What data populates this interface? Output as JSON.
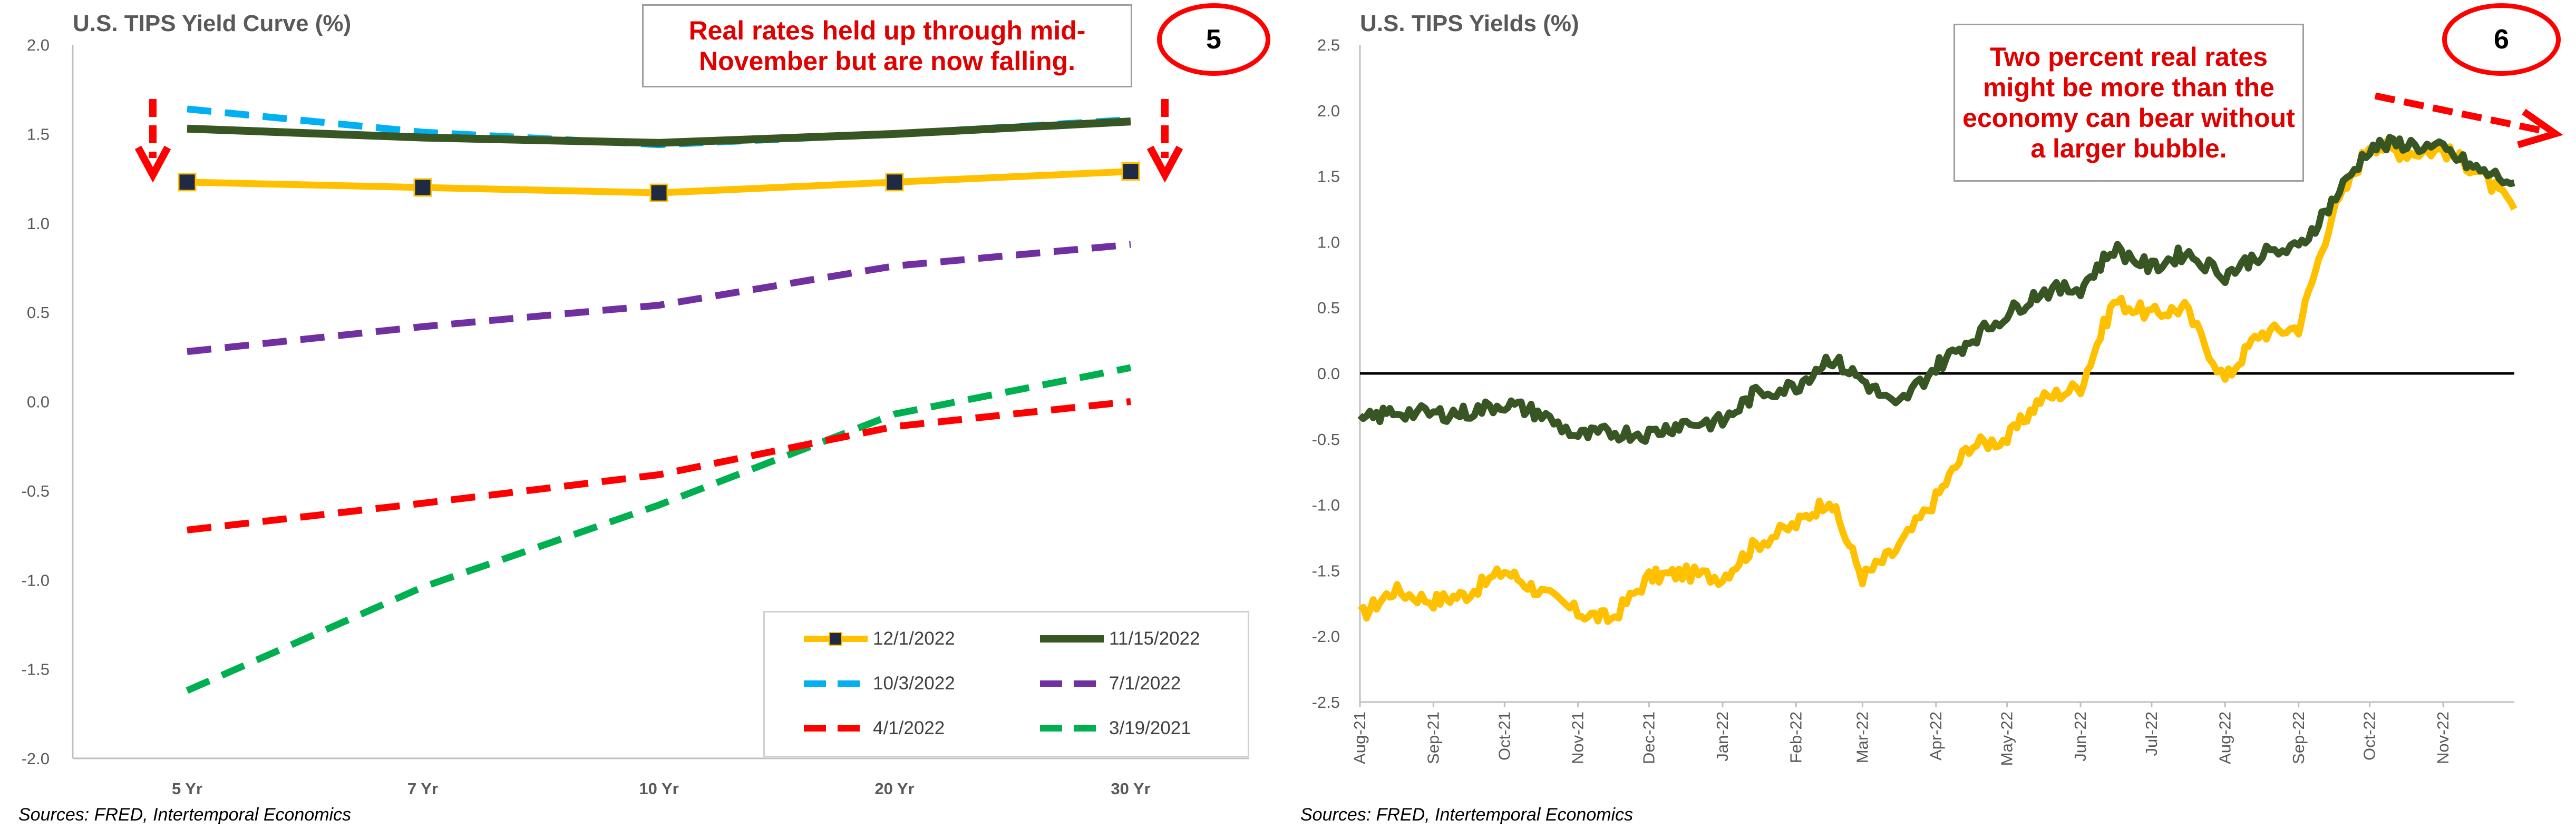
{
  "left": {
    "title": "U.S. TIPS Yield Curve (%)",
    "source": "Sources: FRED, Intertemporal Economics",
    "callout": "Real rates held up through mid-November but are now falling.",
    "badge": "5"
  },
  "right": {
    "title": "U.S. TIPS Yields (%)",
    "source": "Sources: FRED, Intertemporal Economics",
    "callout": "Two percent real rates might be more than the economy can bear without a larger bubble.",
    "badge": "6"
  },
  "colors": {
    "yellow": "#ffc000",
    "dark_green": "#375623",
    "light_blue": "#00b0f0",
    "purple": "#7030a0",
    "red": "#ff0000",
    "green": "#00b050",
    "marker": "#1f2a44"
  },
  "chart_data": [
    {
      "type": "line",
      "title": "U.S. TIPS Yield Curve (%)",
      "categories": [
        "5 Yr",
        "7 Yr",
        "10 Yr",
        "20 Yr",
        "30 Yr"
      ],
      "ylim": [
        -2.0,
        2.0
      ],
      "yticks": [
        "2.0",
        "1.5",
        "1.0",
        "0.5",
        "0.0",
        "-0.5",
        "-1.0",
        "-1.5",
        "-2.0"
      ],
      "grid": false,
      "legend_position": "bottom-right",
      "series": [
        {
          "name": "12/1/2022",
          "values": [
            1.23,
            1.2,
            1.17,
            1.23,
            1.29
          ],
          "color": "#ffc000",
          "style": "solid-marker"
        },
        {
          "name": "11/15/2022",
          "values": [
            1.53,
            1.48,
            1.45,
            1.5,
            1.57
          ],
          "color": "#375623",
          "style": "solid"
        },
        {
          "name": "10/3/2022",
          "values": [
            1.64,
            1.51,
            1.44,
            1.5,
            1.58
          ],
          "color": "#00b0f0",
          "style": "dashed"
        },
        {
          "name": "7/1/2022",
          "values": [
            0.28,
            0.42,
            0.54,
            0.76,
            0.88
          ],
          "color": "#7030a0",
          "style": "dashed"
        },
        {
          "name": "4/1/2022",
          "values": [
            -0.72,
            -0.57,
            -0.41,
            -0.14,
            0.0
          ],
          "color": "#ff0000",
          "style": "dashed"
        },
        {
          "name": "3/19/2021",
          "values": [
            -1.62,
            -1.04,
            -0.58,
            -0.07,
            0.19
          ],
          "color": "#00b050",
          "style": "dashed"
        }
      ]
    },
    {
      "type": "line",
      "title": "U.S. TIPS Yields (%)",
      "x_ticks": [
        "Aug-21",
        "Sep-21",
        "Oct-21",
        "Nov-21",
        "Dec-21",
        "Jan-22",
        "Feb-22",
        "Mar-22",
        "Apr-22",
        "May-22",
        "Jun-22",
        "Jul-22",
        "Aug-22",
        "Sep-22",
        "Oct-22",
        "Nov-22"
      ],
      "xlim": [
        "2021-08-01",
        "2022-12-01"
      ],
      "ylim": [
        -2.5,
        2.5
      ],
      "yticks": [
        "2.5",
        "2.0",
        "1.5",
        "1.0",
        "0.5",
        "0.0",
        "-0.5",
        "-1.0",
        "-1.5",
        "-2.0",
        "-2.5"
      ],
      "zero_line": true,
      "grid": false,
      "series": [
        {
          "name": "",
          "color": "#375623",
          "x": [
            "2021-08-01",
            "2021-08-15",
            "2021-09-01",
            "2021-09-15",
            "2021-10-01",
            "2021-10-15",
            "2021-11-01",
            "2021-11-15",
            "2021-12-01",
            "2021-12-15",
            "2022-01-01",
            "2022-01-15",
            "2022-02-01",
            "2022-02-15",
            "2022-03-01",
            "2022-03-15",
            "2022-04-01",
            "2022-04-15",
            "2022-05-01",
            "2022-05-15",
            "2022-06-01",
            "2022-06-15",
            "2022-07-01",
            "2022-07-15",
            "2022-08-01",
            "2022-08-15",
            "2022-09-01",
            "2022-09-15",
            "2022-10-01",
            "2022-10-15",
            "2022-11-01",
            "2022-11-15",
            "2022-12-01"
          ],
          "y": [
            -0.37,
            -0.29,
            -0.31,
            -0.3,
            -0.23,
            -0.3,
            -0.48,
            -0.45,
            -0.46,
            -0.38,
            -0.37,
            -0.15,
            -0.1,
            0.12,
            -0.05,
            -0.26,
            0.05,
            0.25,
            0.45,
            0.62,
            0.65,
            0.95,
            0.8,
            0.92,
            0.75,
            0.9,
            0.95,
            1.3,
            1.72,
            1.75,
            1.7,
            1.55,
            1.45
          ]
        },
        {
          "name": "",
          "color": "#ffc000",
          "x": [
            "2021-08-01",
            "2021-08-15",
            "2021-09-01",
            "2021-09-15",
            "2021-10-01",
            "2021-10-15",
            "2021-11-01",
            "2021-11-15",
            "2021-12-01",
            "2021-12-15",
            "2022-01-01",
            "2022-01-15",
            "2022-02-01",
            "2022-02-15",
            "2022-03-01",
            "2022-03-15",
            "2022-04-01",
            "2022-04-15",
            "2022-05-01",
            "2022-05-15",
            "2022-06-01",
            "2022-06-15",
            "2022-07-01",
            "2022-07-15",
            "2022-08-01",
            "2022-08-15",
            "2022-09-01",
            "2022-09-15",
            "2022-10-01",
            "2022-10-15",
            "2022-11-01",
            "2022-11-15",
            "2022-12-01"
          ],
          "y": [
            -1.85,
            -1.65,
            -1.73,
            -1.68,
            -1.5,
            -1.65,
            -1.82,
            -1.87,
            -1.55,
            -1.52,
            -1.55,
            -1.3,
            -1.15,
            -0.95,
            -1.55,
            -1.35,
            -0.95,
            -0.55,
            -0.5,
            -0.2,
            -0.1,
            0.55,
            0.45,
            0.5,
            -0.05,
            0.3,
            0.35,
            1.2,
            1.75,
            1.68,
            1.7,
            1.55,
            1.25
          ]
        }
      ]
    }
  ]
}
